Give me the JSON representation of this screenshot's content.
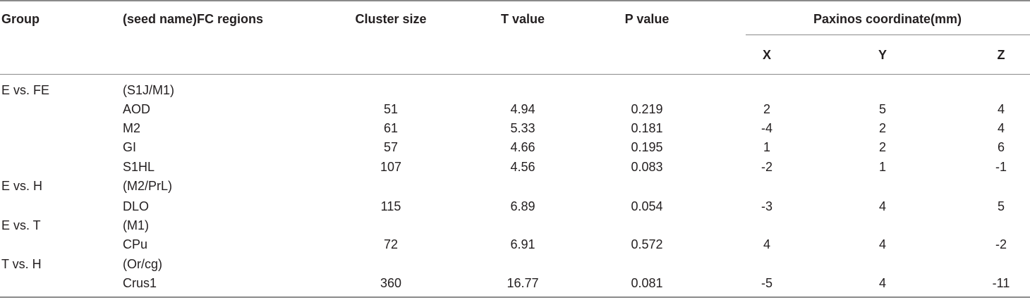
{
  "headers": {
    "group": "Group",
    "regions": "(seed name)FC regions",
    "cluster_size": "Cluster size",
    "t_value": "T value",
    "p_value": "P value",
    "paxinos": "Paxinos coordinate(mm)",
    "x": "X",
    "y": "Y",
    "z": "Z"
  },
  "rows": [
    {
      "group": "E vs. FE",
      "region": "(S1J/M1)",
      "cluster": "",
      "t": "",
      "p": "",
      "x": "",
      "y": "",
      "z": ""
    },
    {
      "group": "",
      "region": "AOD",
      "cluster": "51",
      "t": "4.94",
      "p": "0.219",
      "x": "2",
      "y": "5",
      "z": "4"
    },
    {
      "group": "",
      "region": "M2",
      "cluster": "61",
      "t": "5.33",
      "p": "0.181",
      "x": "-4",
      "y": "2",
      "z": "4"
    },
    {
      "group": "",
      "region": "GI",
      "cluster": "57",
      "t": "4.66",
      "p": "0.195",
      "x": "1",
      "y": "2",
      "z": "6"
    },
    {
      "group": "",
      "region": "S1HL",
      "cluster": "107",
      "t": "4.56",
      "p": "0.083",
      "x": "-2",
      "y": "1",
      "z": "-1"
    },
    {
      "group": "E vs. H",
      "region": "(M2/PrL)",
      "cluster": "",
      "t": "",
      "p": "",
      "x": "",
      "y": "",
      "z": ""
    },
    {
      "group": "",
      "region": "DLO",
      "cluster": "115",
      "t": "6.89",
      "p": "0.054",
      "x": "-3",
      "y": "4",
      "z": "5"
    },
    {
      "group": "E vs. T",
      "region": "(M1)",
      "cluster": "",
      "t": "",
      "p": "",
      "x": "",
      "y": "",
      "z": ""
    },
    {
      "group": "",
      "region": "CPu",
      "cluster": "72",
      "t": "6.91",
      "p": "0.572",
      "x": "4",
      "y": "4",
      "z": "-2"
    },
    {
      "group": "T vs. H",
      "region": "(Or/cg)",
      "cluster": "",
      "t": "",
      "p": "",
      "x": "",
      "y": "",
      "z": ""
    },
    {
      "group": "",
      "region": "Crus1",
      "cluster": "360",
      "t": "16.77",
      "p": "0.081",
      "x": "-5",
      "y": "4",
      "z": "-11"
    }
  ]
}
